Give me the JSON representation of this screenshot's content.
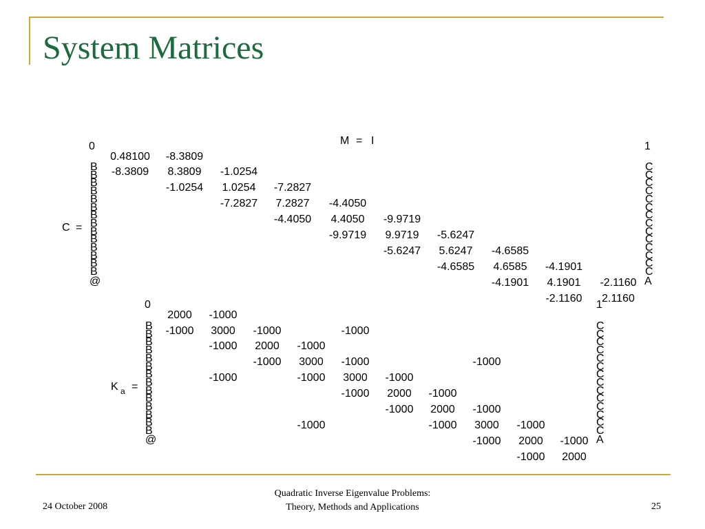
{
  "slide": {
    "title": "System Matrices",
    "footer_left": "24 October 2008",
    "footer_center_line1": "Quadratic Inverse Eigenvalue Problems:",
    "footer_center_line2": "Theory, Methods and Applications",
    "footer_right": "25"
  },
  "m_equation": {
    "left": "M",
    "eq": "=",
    "right": "I"
  },
  "matrix_c": {
    "label": "C",
    "eq": "=",
    "paren_top_left": "0",
    "paren_top_right": "1",
    "paren_bottom_left": "@",
    "paren_bottom_right": "A",
    "paren_mid_left": "B",
    "paren_mid_right": "C",
    "rows": [
      [
        "0.48100",
        "-8.3809",
        "",
        "",
        "",
        "",
        "",
        "",
        "",
        "",
        ""
      ],
      [
        "-8.3809",
        "8.3809",
        "-1.0254",
        "",
        "",
        "",
        "",
        "",
        "",
        "",
        ""
      ],
      [
        "",
        "-1.0254",
        "1.0254",
        "-7.2827",
        "",
        "",
        "",
        "",
        "",
        "",
        ""
      ],
      [
        "",
        "",
        "-7.2827",
        "7.2827",
        "-4.4050",
        "",
        "",
        "",
        "",
        "",
        ""
      ],
      [
        "",
        "",
        "",
        "-4.4050",
        "4.4050",
        "-9.9719",
        "",
        "",
        "",
        "",
        ""
      ],
      [
        "",
        "",
        "",
        "",
        "-9.9719",
        "9.9719",
        "-5.6247",
        "",
        "",
        "",
        ""
      ],
      [
        "",
        "",
        "",
        "",
        "",
        "-5.6247",
        "5.6247",
        "-4.6585",
        "",
        "",
        ""
      ],
      [
        "",
        "",
        "",
        "",
        "",
        "",
        "-4.6585",
        "4.6585",
        "-4.1901",
        "",
        ""
      ],
      [
        "",
        "",
        "",
        "",
        "",
        "",
        "",
        "-4.1901",
        "4.1901",
        "-2.1160",
        ""
      ],
      [
        "",
        "",
        "",
        "",
        "",
        "",
        "",
        "",
        "-2.1160",
        "2.1160",
        ""
      ]
    ]
  },
  "matrix_ka": {
    "label": "K",
    "subscript": "a",
    "eq": "=",
    "paren_top_left": "0",
    "paren_top_right": "1",
    "paren_bottom_left": "@",
    "paren_bottom_right": "A",
    "paren_mid_left": "B",
    "paren_mid_right": "C",
    "rows": [
      [
        "2000",
        "-1000",
        "",
        "",
        "",
        "",
        "",
        "",
        "",
        "",
        ""
      ],
      [
        "-1000",
        "3000",
        "-1000",
        "",
        "-1000",
        "",
        "",
        "",
        "",
        "",
        ""
      ],
      [
        "",
        "-1000",
        "2000",
        "-1000",
        "",
        "",
        "",
        "",
        "",
        "",
        ""
      ],
      [
        "",
        "",
        "-1000",
        "3000",
        "-1000",
        "",
        "",
        "-1000",
        "",
        "",
        ""
      ],
      [
        "",
        "-1000",
        "",
        "-1000",
        "3000",
        "-1000",
        "",
        "",
        "",
        "",
        ""
      ],
      [
        "",
        "",
        "",
        "",
        "-1000",
        "2000",
        "-1000",
        "",
        "",
        "",
        ""
      ],
      [
        "",
        "",
        "",
        "",
        "",
        "-1000",
        "2000",
        "-1000",
        "",
        "",
        ""
      ],
      [
        "",
        "",
        "",
        "-1000",
        "",
        "",
        "-1000",
        "3000",
        "-1000",
        "",
        ""
      ],
      [
        "",
        "",
        "",
        "",
        "",
        "",
        "",
        "-1000",
        "2000",
        "-1000",
        ""
      ],
      [
        "",
        "",
        "",
        "",
        "",
        "",
        "",
        "",
        "-1000",
        "2000",
        ""
      ]
    ]
  }
}
